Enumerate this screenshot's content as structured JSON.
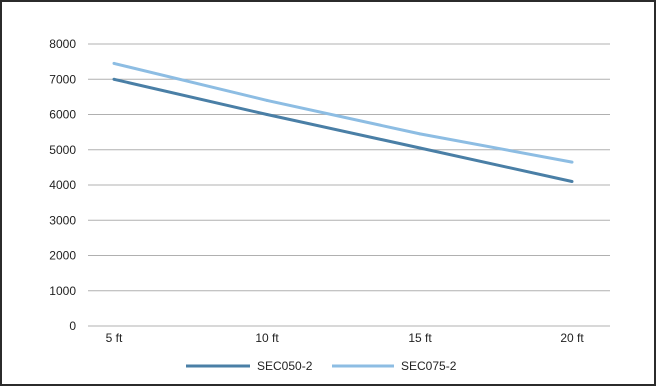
{
  "chart_data": {
    "type": "line",
    "title": "",
    "xlabel": "",
    "ylabel": "",
    "categories": [
      "5 ft",
      "10 ft",
      "15 ft",
      "20 ft"
    ],
    "ylim": [
      0,
      8000
    ],
    "yticks": [
      0,
      1000,
      2000,
      3000,
      4000,
      5000,
      6000,
      7000,
      8000
    ],
    "grid": true,
    "legend_position": "bottom",
    "series": [
      {
        "name": "SEC050-2",
        "values": [
          7000,
          6000,
          5050,
          4100
        ],
        "color": "#4a7fa6"
      },
      {
        "name": "SEC075-2",
        "values": [
          7450,
          6400,
          5450,
          4650
        ],
        "color": "#8dbde3"
      }
    ],
    "gridline_color": "#b0b0b0"
  }
}
